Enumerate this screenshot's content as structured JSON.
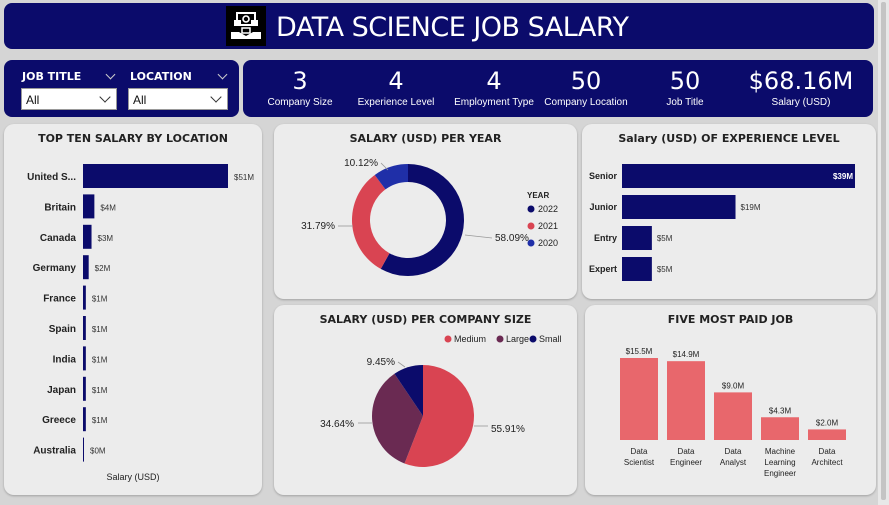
{
  "header": {
    "title": "DATA SCIENCE JOB SALARY",
    "logo_icon": "money-hand-icon"
  },
  "slicers": [
    {
      "label": "JOB TITLE",
      "value": "All"
    },
    {
      "label": "LOCATION",
      "value": "All"
    }
  ],
  "kpis": [
    {
      "value": "3",
      "label": "Company Size"
    },
    {
      "value": "4",
      "label": "Experience Level"
    },
    {
      "value": "4",
      "label": "Employment Type"
    },
    {
      "value": "50",
      "label": "Company Location"
    },
    {
      "value": "50",
      "label": "Job Title"
    },
    {
      "value": "$68.16M",
      "label": "Salary (USD)"
    }
  ],
  "colors": {
    "navy": "#0b0b6b",
    "red": "#d94452",
    "plum": "#6a2a52",
    "blue": "#1f2fa8",
    "salmon": "#e8676c"
  },
  "chart_data": [
    {
      "type": "bar",
      "orientation": "horizontal",
      "title": "TOP TEN SALARY BY LOCATION",
      "xlabel": "Salary (USD)",
      "categories": [
        "United S...",
        "Britain",
        "Canada",
        "Germany",
        "France",
        "Spain",
        "India",
        "Japan",
        "Greece",
        "Australia"
      ],
      "values": [
        51,
        4,
        3,
        2,
        1,
        1,
        1,
        1,
        1,
        0
      ],
      "value_labels": [
        "$51M",
        "$4M",
        "$3M",
        "$2M",
        "$1M",
        "$1M",
        "$1M",
        "$1M",
        "$1M",
        "$0M"
      ]
    },
    {
      "type": "pie",
      "donut": true,
      "title": "SALARY (USD) PER YEAR",
      "legend_title": "YEAR",
      "legend_position": "right",
      "labels": [
        "2022",
        "2021",
        "2020"
      ],
      "values": [
        58.09,
        31.79,
        10.12
      ],
      "value_labels": [
        "58.09%",
        "31.79%",
        "10.12%"
      ],
      "colors": [
        "#0b0b6b",
        "#d94452",
        "#1f2fa8"
      ]
    },
    {
      "type": "bar",
      "orientation": "horizontal",
      "title": "Salary (USD) OF EXPERIENCE LEVEL",
      "categories": [
        "Senior",
        "Junior",
        "Entry",
        "Expert"
      ],
      "values": [
        39,
        19,
        5,
        5
      ],
      "value_labels": [
        "$39M",
        "$19M",
        "$5M",
        "$5M"
      ]
    },
    {
      "type": "pie",
      "title": "SALARY (USD) PER COMPANY SIZE",
      "legend_position": "top",
      "labels": [
        "Medium",
        "Large",
        "Small"
      ],
      "values": [
        55.91,
        34.64,
        9.45
      ],
      "value_labels": [
        "55.91%",
        "34.64%",
        "9.45%"
      ],
      "colors": [
        "#d94452",
        "#6a2a52",
        "#0b0b6b"
      ]
    },
    {
      "type": "bar",
      "orientation": "vertical",
      "title": "FIVE MOST PAID JOB",
      "categories": [
        "Data Scientist",
        "Data Engineer",
        "Data Analyst",
        "Machine Learning Engineer",
        "Data Architect"
      ],
      "category_lines": [
        [
          "Data",
          "Scientist"
        ],
        [
          "Data",
          "Engineer"
        ],
        [
          "Data",
          "Analyst"
        ],
        [
          "Machine",
          "Learning",
          "Engineer"
        ],
        [
          "Data",
          "Architect"
        ]
      ],
      "values": [
        15.5,
        14.9,
        9.0,
        4.3,
        2.0
      ],
      "value_labels": [
        "$15.5M",
        "$14.9M",
        "$9.0M",
        "$4.3M",
        "$2.0M"
      ]
    }
  ]
}
